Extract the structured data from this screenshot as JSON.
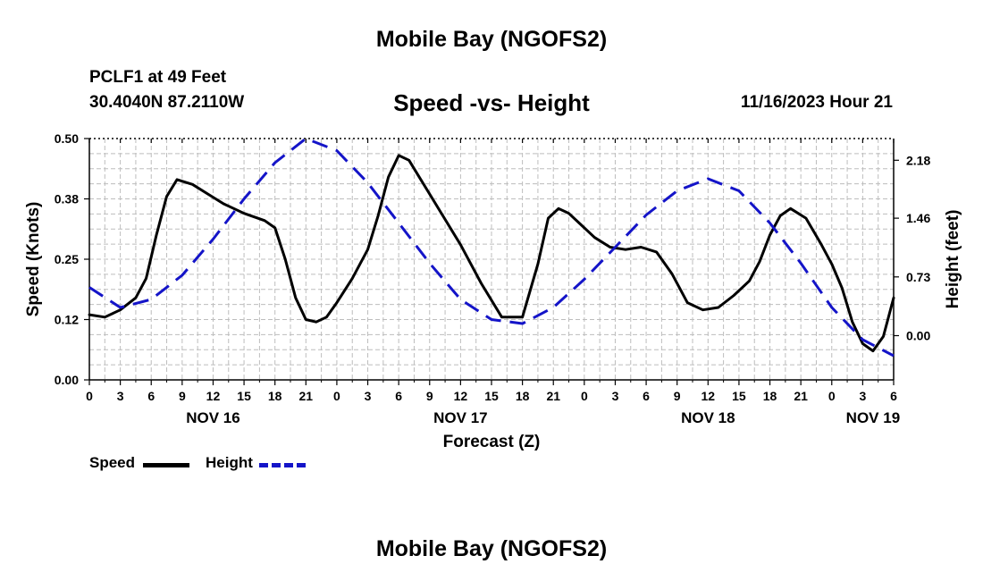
{
  "page": {
    "title": "Mobile Bay (NGOFS2)",
    "footer_title": "Mobile Bay (NGOFS2)"
  },
  "station": {
    "line1": "PCLF1 at 49 Feet",
    "line2": "30.4040N  87.2110W"
  },
  "datetime": "11/16/2023 Hour 21",
  "legend": {
    "speed_label": "Speed",
    "height_label": "Height"
  },
  "colors": {
    "speed": "#000000",
    "height": "#1414c8",
    "grid": "#bdbdbd"
  },
  "chart_data": {
    "type": "line",
    "title": "Speed -vs- Height",
    "xlabel": "Forecast (Z)",
    "ylabel": "Speed (Knots)",
    "y2label": "Height (feet)",
    "xlim": [
      0,
      78
    ],
    "ylim": [
      0,
      0.5
    ],
    "y2lim": [
      -0.55,
      2.45
    ],
    "yticks": [
      "0.00",
      "0.12",
      "0.25",
      "0.38",
      "0.50"
    ],
    "ytick_values": [
      0,
      0.125,
      0.25,
      0.375,
      0.5
    ],
    "y2ticks": [
      "0.00",
      "0.73",
      "1.46",
      "2.18"
    ],
    "y2tick_values": [
      0,
      0.73,
      1.46,
      2.18
    ],
    "xtick_labels": [
      "0",
      "3",
      "6",
      "9",
      "12",
      "15",
      "18",
      "21",
      "0",
      "3",
      "6",
      "9",
      "12",
      "15",
      "18",
      "21",
      "0",
      "3",
      "6",
      "9",
      "12",
      "15",
      "18",
      "21",
      "0",
      "3",
      "6"
    ],
    "date_labels": [
      {
        "x": 12,
        "label": "NOV 16"
      },
      {
        "x": 36,
        "label": "NOV 17"
      },
      {
        "x": 60,
        "label": "NOV 18"
      },
      {
        "x": 76,
        "label": "NOV 19"
      }
    ],
    "legend_position": "bottom-left",
    "grid": true,
    "series": [
      {
        "name": "Speed",
        "axis": "left",
        "style": "solid",
        "x": [
          0,
          1.5,
          3,
          4.5,
          5.5,
          6.5,
          7.5,
          8.5,
          10,
          11.5,
          13,
          15,
          17,
          18,
          19,
          20,
          21,
          22,
          23,
          24,
          25.5,
          27,
          28,
          29,
          30,
          31,
          32,
          33,
          34,
          36,
          38,
          40,
          42,
          43.5,
          44.5,
          45.5,
          46.5,
          47.5,
          49,
          50.5,
          52,
          53.5,
          55,
          56.5,
          58,
          59.5,
          61,
          62.5,
          64,
          65,
          66,
          67,
          68,
          69.5,
          71,
          72,
          73,
          74,
          75,
          76,
          77,
          78
        ],
        "values": [
          0.135,
          0.13,
          0.145,
          0.17,
          0.21,
          0.3,
          0.38,
          0.415,
          0.405,
          0.385,
          0.365,
          0.345,
          0.33,
          0.315,
          0.25,
          0.17,
          0.125,
          0.12,
          0.13,
          0.16,
          0.21,
          0.27,
          0.34,
          0.42,
          0.465,
          0.455,
          0.42,
          0.385,
          0.35,
          0.28,
          0.2,
          0.13,
          0.13,
          0.24,
          0.335,
          0.355,
          0.345,
          0.325,
          0.295,
          0.275,
          0.27,
          0.275,
          0.265,
          0.22,
          0.16,
          0.145,
          0.15,
          0.175,
          0.205,
          0.245,
          0.3,
          0.34,
          0.355,
          0.335,
          0.28,
          0.24,
          0.19,
          0.12,
          0.075,
          0.06,
          0.09,
          0.17
        ]
      },
      {
        "name": "Height",
        "axis": "right",
        "style": "dashed",
        "x": [
          0,
          3,
          6,
          9,
          12,
          15,
          18,
          21,
          24,
          27,
          30,
          33,
          36,
          39,
          42,
          45,
          48,
          51,
          54,
          57,
          60,
          63,
          66,
          69,
          72,
          75,
          78
        ],
        "values": [
          0.6,
          0.35,
          0.45,
          0.75,
          1.2,
          1.7,
          2.15,
          2.45,
          2.3,
          1.9,
          1.4,
          0.9,
          0.45,
          0.2,
          0.15,
          0.35,
          0.7,
          1.1,
          1.5,
          1.8,
          1.95,
          1.8,
          1.4,
          0.9,
          0.35,
          -0.05,
          -0.25
        ]
      }
    ]
  }
}
